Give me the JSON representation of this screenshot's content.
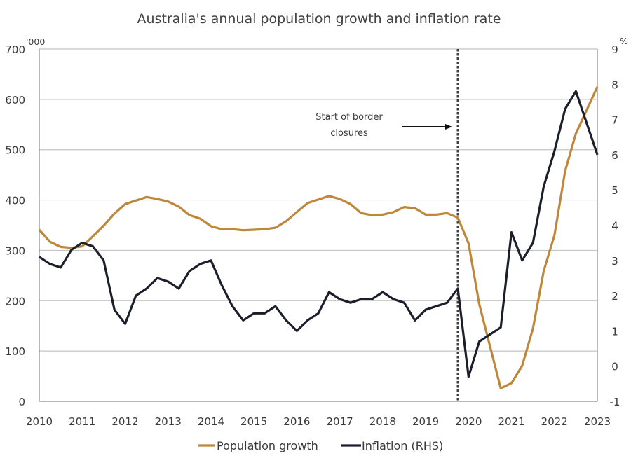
{
  "chart_data": {
    "type": "line",
    "title": "Australia's annual population growth and inflation rate",
    "xlabel": "",
    "ylabel": "'000",
    "ylabel_right": "%",
    "xlim": [
      2010,
      2023
    ],
    "ylim": [
      0,
      700
    ],
    "ylim_right": [
      -1,
      9
    ],
    "x_ticks": [
      "2010",
      "2011",
      "2012",
      "2013",
      "2014",
      "2015",
      "2016",
      "2017",
      "2018",
      "2019",
      "2020",
      "2021",
      "2022",
      "2023"
    ],
    "y_ticks": [
      "0",
      "100",
      "200",
      "300",
      "400",
      "500",
      "600",
      "700"
    ],
    "y_ticks_right": [
      "-1",
      "0",
      "1",
      "2",
      "3",
      "4",
      "5",
      "6",
      "7",
      "8",
      "9"
    ],
    "grid": true,
    "legend_position": "bottom-center",
    "colors": {
      "population": "#bf873a",
      "inflation": "#1c1f2b",
      "marker": "#404040"
    },
    "series": [
      {
        "name": "Population growth",
        "axis": "left",
        "x": [
          2010.0,
          2010.25,
          2010.5,
          2010.75,
          2011.0,
          2011.25,
          2011.5,
          2011.75,
          2012.0,
          2012.25,
          2012.5,
          2012.75,
          2013.0,
          2013.25,
          2013.5,
          2013.75,
          2014.0,
          2014.25,
          2014.5,
          2014.75,
          2015.0,
          2015.25,
          2015.5,
          2015.75,
          2016.0,
          2016.25,
          2016.5,
          2016.75,
          2017.0,
          2017.25,
          2017.5,
          2017.75,
          2018.0,
          2018.25,
          2018.5,
          2018.75,
          2019.0,
          2019.25,
          2019.5,
          2019.75,
          2020.0,
          2020.25,
          2020.75,
          2021.0,
          2021.25,
          2021.5,
          2021.75,
          2022.0,
          2022.25,
          2022.5,
          2023.0
        ],
        "values": [
          341,
          317,
          307,
          305,
          308,
          328,
          349,
          373,
          392,
          399,
          406,
          402,
          397,
          387,
          370,
          363,
          348,
          342,
          342,
          340,
          341,
          342,
          345,
          358,
          376,
          394,
          401,
          408,
          402,
          392,
          374,
          370,
          371,
          376,
          386,
          384,
          371,
          371,
          374,
          365,
          314,
          193,
          26,
          36,
          71,
          145,
          259,
          330,
          458,
          532,
          625
        ]
      },
      {
        "name": "Inflation (RHS)",
        "axis": "right",
        "x": [
          2010.0,
          2010.25,
          2010.5,
          2010.75,
          2011.0,
          2011.25,
          2011.5,
          2011.75,
          2012.0,
          2012.25,
          2012.5,
          2012.75,
          2013.0,
          2013.25,
          2013.5,
          2013.75,
          2014.0,
          2014.25,
          2014.5,
          2014.75,
          2015.0,
          2015.25,
          2015.5,
          2015.75,
          2016.0,
          2016.25,
          2016.5,
          2016.75,
          2017.0,
          2017.25,
          2017.5,
          2017.75,
          2018.0,
          2018.25,
          2018.5,
          2018.75,
          2019.0,
          2019.25,
          2019.5,
          2019.75,
          2020.0,
          2020.25,
          2020.75,
          2021.0,
          2021.25,
          2021.5,
          2021.75,
          2022.0,
          2022.25,
          2022.5,
          2023.0
        ],
        "values": [
          3.1,
          2.9,
          2.8,
          3.3,
          3.5,
          3.4,
          3.0,
          1.6,
          1.2,
          2.0,
          2.2,
          2.5,
          2.4,
          2.2,
          2.7,
          2.9,
          3.0,
          2.3,
          1.7,
          1.3,
          1.5,
          1.5,
          1.7,
          1.3,
          1.0,
          1.3,
          1.5,
          2.1,
          1.9,
          1.8,
          1.9,
          1.9,
          2.1,
          1.9,
          1.8,
          1.3,
          1.6,
          1.7,
          1.8,
          2.2,
          -0.3,
          0.7,
          1.1,
          3.8,
          3.0,
          3.5,
          5.1,
          6.1,
          7.3,
          7.8,
          6.0
        ]
      }
    ],
    "annotations": [
      {
        "type": "vertical-dotted-line",
        "x": 2019.75,
        "text_lines": [
          "Start of border",
          "closures"
        ]
      }
    ]
  }
}
